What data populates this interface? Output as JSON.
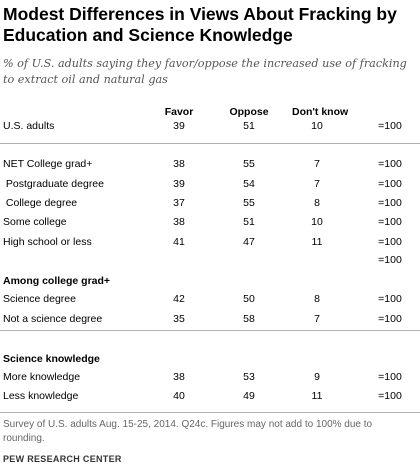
{
  "chart_data": {
    "type": "table",
    "title": "Modest Differences in Views About Fracking by Education and Science Knowledge",
    "subtitle": "% of U.S. adults saying they favor/oppose the increased use of fracking to extract oil and natural gas",
    "columns": [
      "Favor",
      "Oppose",
      "Don't know",
      ""
    ],
    "total_label": "=100",
    "sections": [
      {
        "heading": "",
        "rows": [
          {
            "label": "U.S. adults",
            "favor": 39,
            "oppose": 51,
            "dont_know": 10
          }
        ]
      },
      {
        "heading": "",
        "rows": [
          {
            "label": "NET College grad+",
            "favor": 38,
            "oppose": 55,
            "dont_know": 7
          },
          {
            "label": " Postgraduate degree",
            "favor": 39,
            "oppose": 54,
            "dont_know": 7
          },
          {
            "label": " College degree",
            "favor": 37,
            "oppose": 55,
            "dont_know": 8
          },
          {
            "label": "Some college",
            "favor": 38,
            "oppose": 51,
            "dont_know": 10
          },
          {
            "label": "High school or less",
            "favor": 41,
            "oppose": 47,
            "dont_know": 11
          },
          {
            "label": "",
            "favor": null,
            "oppose": null,
            "dont_know": null
          }
        ]
      },
      {
        "heading": "Among college grad+",
        "rows": [
          {
            "label": "Science degree",
            "favor": 42,
            "oppose": 50,
            "dont_know": 8
          },
          {
            "label": "Not a science degree",
            "favor": 35,
            "oppose": 58,
            "dont_know": 7
          }
        ]
      },
      {
        "heading": "Science knowledge",
        "rows": [
          {
            "label": "More knowledge",
            "favor": 38,
            "oppose": 53,
            "dont_know": 9
          },
          {
            "label": "Less knowledge",
            "favor": 40,
            "oppose": 49,
            "dont_know": 11
          }
        ]
      }
    ]
  },
  "footnote": "Survey of U.S. adults Aug. 15-25, 2014. Q24c. Figures may not add to 100% due to rounding.",
  "source": "PEW RESEARCH CENTER"
}
